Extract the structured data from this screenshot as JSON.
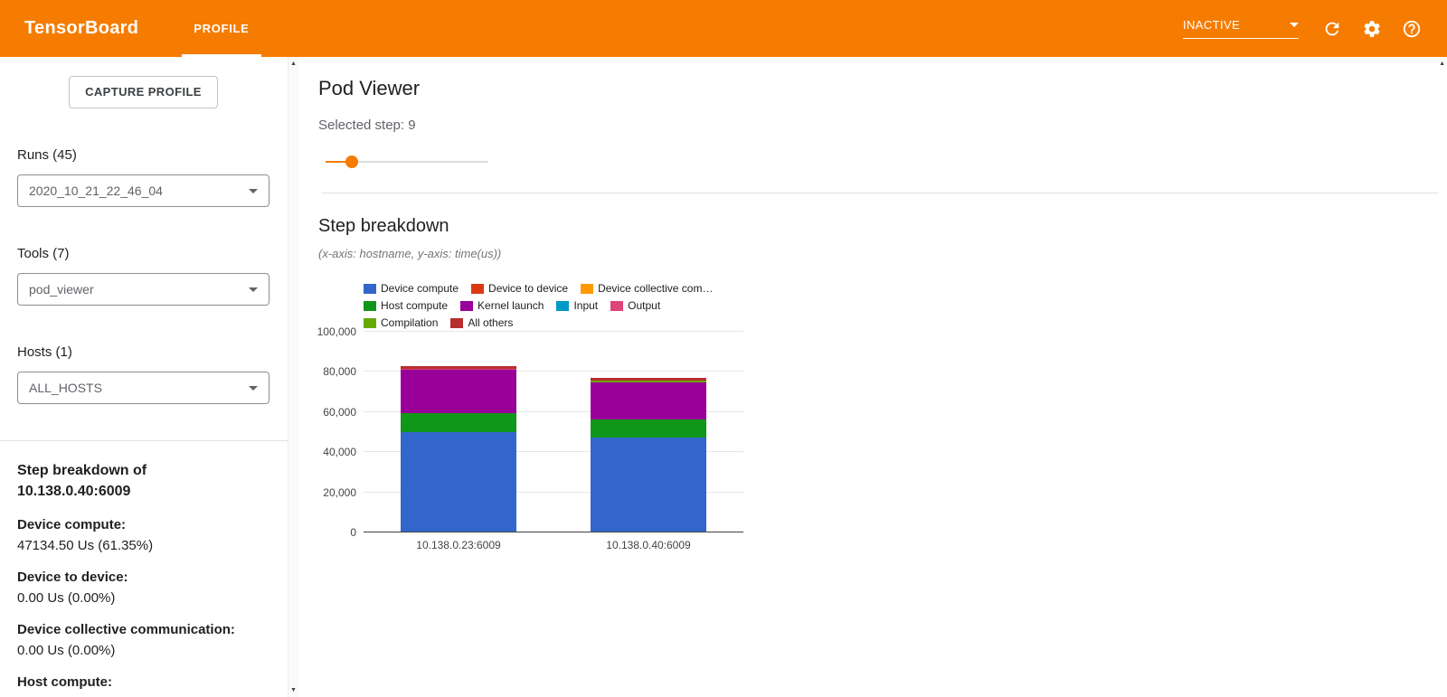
{
  "header": {
    "title": "TensorBoard",
    "tabs": [
      {
        "label": "PROFILE",
        "active": true
      }
    ],
    "status_dropdown": "INACTIVE",
    "icons": [
      "refresh-icon",
      "settings-icon",
      "help-icon"
    ],
    "accent_color": "#f57c00"
  },
  "sidebar": {
    "capture_button": "CAPTURE PROFILE",
    "runs": {
      "label": "Runs (45)",
      "selected": "2020_10_21_22_46_04"
    },
    "tools": {
      "label": "Tools (7)",
      "selected": "pod_viewer"
    },
    "hosts": {
      "label": "Hosts (1)",
      "selected": "ALL_HOSTS"
    },
    "breakdown": {
      "title_line1": "Step breakdown of",
      "title_line2": "10.138.0.40:6009",
      "stats": [
        {
          "label": "Device compute:",
          "value": "47134.50 Us (61.35%)"
        },
        {
          "label": "Device to device:",
          "value": "0.00 Us (0.00%)"
        },
        {
          "label": "Device collective communication:",
          "value": "0.00 Us (0.00%)"
        },
        {
          "label": "Host compute:",
          "value": ""
        }
      ]
    }
  },
  "main": {
    "title": "Pod Viewer",
    "selected_step_label": "Selected step: 9",
    "selected_step_value": 9,
    "section": {
      "title": "Step breakdown",
      "subtitle": "(x-axis: hostname, y-axis: time(us))"
    }
  },
  "chart_data": {
    "type": "bar",
    "stacked": true,
    "title": "Step breakdown",
    "xlabel": "hostname",
    "ylabel": "time(us)",
    "ylim": [
      0,
      100000
    ],
    "grid": true,
    "legend_position": "top",
    "ytick_values": [
      0,
      20000,
      40000,
      60000,
      80000,
      100000
    ],
    "ytick_labels": [
      "0",
      "20,000",
      "40,000",
      "60,000",
      "80,000",
      "100,000"
    ],
    "categories": [
      "10.138.0.23:6009",
      "10.138.0.40:6009"
    ],
    "series": [
      {
        "name": "Device compute",
        "legend": "Device compute",
        "color": "#3366cc",
        "values": [
          49800,
          47134.5
        ]
      },
      {
        "name": "Device to device",
        "legend": "Device to device",
        "color": "#dc3912",
        "values": [
          0,
          0
        ]
      },
      {
        "name": "Device collective communication",
        "legend": "Device collective com…",
        "color": "#ff9900",
        "values": [
          0,
          0
        ]
      },
      {
        "name": "Host compute",
        "legend": "Host compute",
        "color": "#109618",
        "values": [
          9700,
          9000
        ]
      },
      {
        "name": "Kernel launch",
        "legend": "Kernel launch",
        "color": "#990099",
        "values": [
          21800,
          18500
        ]
      },
      {
        "name": "Input",
        "legend": "Input",
        "color": "#0099c6",
        "values": [
          0,
          0
        ]
      },
      {
        "name": "Output",
        "legend": "Output",
        "color": "#dd4477",
        "values": [
          300,
          300
        ]
      },
      {
        "name": "Compilation",
        "legend": "Compilation",
        "color": "#66aa00",
        "values": [
          0,
          900
        ]
      },
      {
        "name": "All others",
        "legend": "All others",
        "color": "#b82e2e",
        "values": [
          1200,
          1000
        ]
      }
    ]
  }
}
